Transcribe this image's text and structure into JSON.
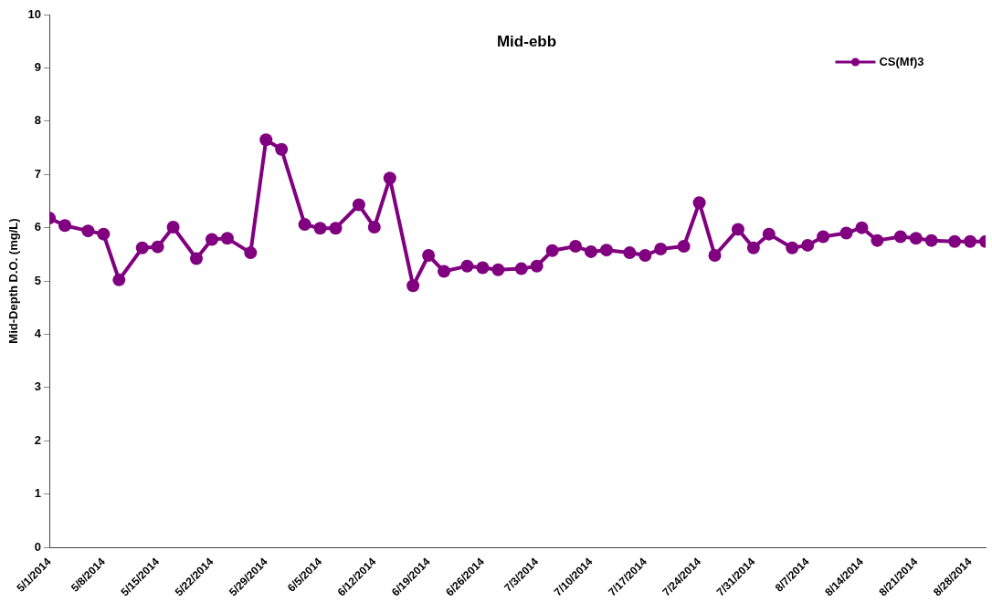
{
  "chart_data": {
    "type": "line",
    "title": "Mid-ebb",
    "ylabel": "Mid-Depth D.O. (mg/L)",
    "x": [
      "2014-05-01",
      "2014-05-03",
      "2014-05-06",
      "2014-05-08",
      "2014-05-10",
      "2014-05-13",
      "2014-05-15",
      "2014-05-17",
      "2014-05-20",
      "2014-05-22",
      "2014-05-24",
      "2014-05-27",
      "2014-05-29",
      "2014-05-31",
      "2014-06-03",
      "2014-06-05",
      "2014-06-07",
      "2014-06-10",
      "2014-06-12",
      "2014-06-14",
      "2014-06-17",
      "2014-06-19",
      "2014-06-21",
      "2014-06-24",
      "2014-06-26",
      "2014-06-28",
      "2014-07-01",
      "2014-07-03",
      "2014-07-05",
      "2014-07-08",
      "2014-07-10",
      "2014-07-12",
      "2014-07-15",
      "2014-07-17",
      "2014-07-19",
      "2014-07-22",
      "2014-07-24",
      "2014-07-26",
      "2014-07-29",
      "2014-07-31",
      "2014-08-02",
      "2014-08-05",
      "2014-08-07",
      "2014-08-09",
      "2014-08-12",
      "2014-08-14",
      "2014-08-16",
      "2014-08-19",
      "2014-08-21",
      "2014-08-23",
      "2014-08-26",
      "2014-08-28",
      "2014-08-30"
    ],
    "series": [
      {
        "name": "CS(Mf)3",
        "color": "#800080",
        "values": [
          6.18,
          6.04,
          5.94,
          5.88,
          5.02,
          5.62,
          5.64,
          6.01,
          5.42,
          5.78,
          5.8,
          5.53,
          7.65,
          7.47,
          6.06,
          5.99,
          5.99,
          6.43,
          6.01,
          6.93,
          4.91,
          5.48,
          5.18,
          5.28,
          5.25,
          5.21,
          5.23,
          5.28,
          5.57,
          5.65,
          5.55,
          5.58,
          5.53,
          5.48,
          5.6,
          5.65,
          6.47,
          5.48,
          5.97,
          5.62,
          5.88,
          5.62,
          5.67,
          5.83,
          5.9,
          6.0,
          5.76,
          5.83,
          5.8,
          5.76,
          5.74,
          5.74,
          5.74
        ]
      }
    ],
    "xlim": [
      "2014-05-01",
      "2014-08-30"
    ],
    "xticks": [
      {
        "value": "2014-05-01",
        "label": "5/1/2014"
      },
      {
        "value": "2014-05-08",
        "label": "5/8/2014"
      },
      {
        "value": "2014-05-15",
        "label": "5/15/2014"
      },
      {
        "value": "2014-05-22",
        "label": "5/22/2014"
      },
      {
        "value": "2014-05-29",
        "label": "5/29/2014"
      },
      {
        "value": "2014-06-05",
        "label": "6/5/2014"
      },
      {
        "value": "2014-06-12",
        "label": "6/12/2014"
      },
      {
        "value": "2014-06-19",
        "label": "6/19/2014"
      },
      {
        "value": "2014-06-26",
        "label": "6/26/2014"
      },
      {
        "value": "2014-07-03",
        "label": "7/3/2014"
      },
      {
        "value": "2014-07-10",
        "label": "7/10/2014"
      },
      {
        "value": "2014-07-17",
        "label": "7/17/2014"
      },
      {
        "value": "2014-07-24",
        "label": "7/24/2014"
      },
      {
        "value": "2014-07-31",
        "label": "7/31/2014"
      },
      {
        "value": "2014-08-07",
        "label": "8/7/2014"
      },
      {
        "value": "2014-08-14",
        "label": "8/14/2014"
      },
      {
        "value": "2014-08-21",
        "label": "8/21/2014"
      },
      {
        "value": "2014-08-28",
        "label": "8/28/2014"
      }
    ],
    "ylim": [
      0,
      10
    ],
    "yticks": [
      0,
      1,
      2,
      3,
      4,
      5,
      6,
      7,
      8,
      9,
      10
    ],
    "grid": false,
    "legend": "top right",
    "marker": "circle",
    "line_style": "solid"
  }
}
